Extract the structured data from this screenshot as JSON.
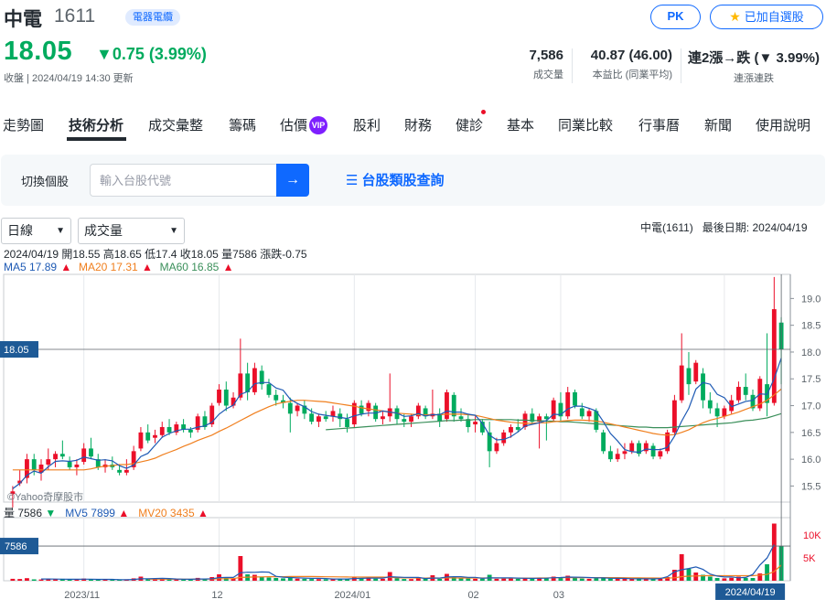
{
  "header": {
    "name": "中電",
    "code": "1611",
    "tag": "電器電纜",
    "price": "18.05",
    "change": "▼0.75 (3.99%)",
    "status_time": "收盤 | 2024/04/19 14:30 更新",
    "pk_label": "PK",
    "watchlist_label": "已加自選股",
    "stats": [
      {
        "value": "7,586",
        "label": "成交量"
      },
      {
        "value": "40.87 (46.00)",
        "label": "本益比 (同業平均)"
      },
      {
        "value": "連2漲→跌 (▼ 3.99%)",
        "label": "連漲連跌"
      }
    ]
  },
  "tabs": [
    {
      "label": "走勢圖"
    },
    {
      "label": "技術分析"
    },
    {
      "label": "成交彙整"
    },
    {
      "label": "籌碼"
    },
    {
      "label": "估價"
    },
    {
      "label": "股利"
    },
    {
      "label": "財務"
    },
    {
      "label": "健診"
    },
    {
      "label": "基本"
    },
    {
      "label": "同業比較"
    },
    {
      "label": "行事曆"
    },
    {
      "label": "新聞"
    },
    {
      "label": "使用說明"
    }
  ],
  "vip_badge": "VIP",
  "search": {
    "label": "切換個股",
    "placeholder": "輸入台股代號",
    "category_link": "台股類股查詢"
  },
  "controls": {
    "period": "日線",
    "indicator": "成交量",
    "stock_info": "中電(1611)   最後日期: 2024/04/19"
  },
  "legend": {
    "ohlc": "2024/04/19 開18.55 高18.65 低17.4 收18.05 量7586 漲跌-0.75",
    "ma5": "MA5 17.89",
    "ma20": "MA20 17.31",
    "ma60": "MA60 16.85",
    "vol": "量 7586",
    "mv5": "MV5 7899",
    "mv20": "MV20 3435",
    "watermark": "©Yahoo奇摩股市"
  },
  "colors": {
    "up": "#eb0f29",
    "down": "#00ab5e",
    "accent": "#0f69ff",
    "ma5": "#1e5ab4",
    "ma20": "#f07f1e",
    "ma60": "#3a8f5a"
  },
  "chart_data": {
    "type": "candlestick",
    "price_axis": {
      "ticks": [
        "19.0",
        "18.5",
        "18.0",
        "17.5",
        "17.0",
        "16.5",
        "16.0",
        "15.5"
      ],
      "min": 15.2,
      "max": 19.45
    },
    "volume_axis": {
      "ticks": [
        "10K",
        "5K"
      ],
      "max": 13000
    },
    "x_ticks": [
      "2023/11",
      "12",
      "2024/01",
      "02",
      "03",
      "04"
    ],
    "x_tick_index": [
      10,
      29,
      48,
      65,
      77,
      100
    ],
    "current_price_label": "18.05",
    "current_volume_label": "7586",
    "last_date_label": "2024/04/19",
    "candles": [
      [
        15.35,
        15.5,
        15.1,
        15.4
      ],
      [
        15.55,
        15.8,
        15.5,
        15.6
      ],
      [
        15.65,
        16.1,
        15.55,
        16.0
      ],
      [
        16.0,
        16.1,
        15.7,
        15.8
      ],
      [
        15.75,
        16.0,
        15.6,
        15.9
      ],
      [
        15.9,
        16.2,
        15.8,
        16.0
      ],
      [
        16.0,
        16.15,
        15.85,
        16.1
      ],
      [
        16.1,
        16.35,
        16.0,
        16.05
      ],
      [
        15.95,
        16.05,
        15.8,
        15.85
      ],
      [
        15.85,
        16.0,
        15.7,
        15.9
      ],
      [
        15.95,
        16.3,
        15.9,
        16.2
      ],
      [
        16.2,
        16.4,
        16.0,
        16.05
      ],
      [
        16.0,
        16.1,
        15.8,
        15.85
      ],
      [
        15.85,
        16.0,
        15.75,
        15.9
      ],
      [
        15.9,
        16.05,
        15.8,
        15.85
      ],
      [
        15.8,
        15.9,
        15.7,
        15.75
      ],
      [
        15.75,
        16.0,
        15.7,
        15.8
      ],
      [
        15.85,
        16.25,
        15.8,
        16.15
      ],
      [
        16.2,
        16.6,
        16.15,
        16.5
      ],
      [
        16.5,
        16.65,
        16.3,
        16.35
      ],
      [
        16.4,
        16.55,
        16.3,
        16.45
      ],
      [
        16.45,
        16.7,
        16.4,
        16.6
      ],
      [
        16.6,
        16.75,
        16.45,
        16.5
      ],
      [
        16.5,
        16.7,
        16.45,
        16.65
      ],
      [
        16.65,
        16.75,
        16.5,
        16.55
      ],
      [
        16.55,
        16.6,
        16.4,
        16.5
      ],
      [
        16.55,
        16.85,
        16.5,
        16.8
      ],
      [
        16.8,
        16.9,
        16.55,
        16.6
      ],
      [
        16.65,
        17.05,
        16.6,
        17.0
      ],
      [
        17.05,
        17.4,
        17.0,
        17.3
      ],
      [
        17.3,
        17.45,
        16.9,
        17.0
      ],
      [
        17.0,
        17.25,
        16.95,
        17.15
      ],
      [
        17.15,
        18.25,
        17.1,
        17.6
      ],
      [
        17.6,
        17.8,
        17.1,
        17.25
      ],
      [
        17.25,
        17.8,
        17.2,
        17.7
      ],
      [
        17.65,
        17.75,
        17.3,
        17.4
      ],
      [
        17.4,
        17.5,
        17.15,
        17.2
      ],
      [
        17.2,
        17.3,
        17.0,
        17.1
      ],
      [
        17.1,
        17.2,
        16.95,
        17.05
      ],
      [
        17.05,
        17.15,
        16.5,
        16.85
      ],
      [
        16.9,
        17.05,
        16.8,
        17.0
      ],
      [
        17.0,
        17.1,
        16.75,
        16.85
      ],
      [
        16.85,
        16.95,
        16.65,
        16.7
      ],
      [
        16.7,
        16.85,
        16.6,
        16.8
      ],
      [
        16.8,
        16.9,
        16.7,
        16.75
      ],
      [
        16.8,
        17.0,
        16.7,
        16.9
      ],
      [
        16.85,
        16.95,
        16.6,
        16.75
      ],
      [
        16.75,
        16.85,
        16.5,
        16.6
      ],
      [
        16.65,
        17.1,
        16.6,
        17.05
      ],
      [
        17.0,
        17.1,
        16.8,
        16.85
      ],
      [
        16.9,
        17.1,
        16.8,
        17.05
      ],
      [
        17.0,
        17.05,
        16.7,
        16.75
      ],
      [
        16.75,
        16.9,
        16.65,
        16.8
      ],
      [
        16.8,
        17.6,
        16.7,
        16.95
      ],
      [
        16.95,
        17.0,
        16.65,
        16.75
      ],
      [
        16.75,
        16.85,
        16.6,
        16.7
      ],
      [
        16.7,
        16.85,
        16.6,
        16.8
      ],
      [
        16.8,
        17.05,
        16.75,
        17.0
      ],
      [
        16.95,
        17.0,
        16.75,
        16.8
      ],
      [
        16.8,
        17.3,
        16.75,
        16.85
      ],
      [
        16.85,
        16.95,
        16.6,
        16.7
      ],
      [
        16.75,
        17.3,
        16.7,
        17.25
      ],
      [
        17.2,
        17.25,
        16.7,
        16.8
      ],
      [
        16.8,
        16.95,
        16.7,
        16.75
      ],
      [
        16.75,
        16.85,
        16.5,
        16.6
      ],
      [
        16.65,
        16.8,
        16.5,
        16.7
      ],
      [
        16.7,
        16.75,
        16.45,
        16.5
      ],
      [
        16.5,
        16.7,
        15.85,
        16.15
      ],
      [
        16.15,
        16.4,
        16.1,
        16.3
      ],
      [
        16.3,
        16.55,
        16.25,
        16.5
      ],
      [
        16.5,
        16.65,
        16.4,
        16.6
      ],
      [
        16.6,
        16.75,
        16.5,
        16.55
      ],
      [
        16.6,
        16.9,
        16.55,
        16.85
      ],
      [
        16.85,
        16.95,
        16.65,
        16.7
      ],
      [
        16.7,
        16.85,
        16.2,
        16.8
      ],
      [
        16.8,
        16.85,
        16.35,
        16.75
      ],
      [
        16.75,
        17.15,
        16.7,
        17.1
      ],
      [
        17.05,
        17.25,
        16.7,
        16.8
      ],
      [
        16.8,
        17.35,
        16.75,
        17.25
      ],
      [
        17.25,
        17.3,
        16.95,
        17.0
      ],
      [
        16.95,
        17.05,
        16.75,
        16.8
      ],
      [
        16.8,
        16.95,
        16.7,
        16.9
      ],
      [
        16.9,
        16.95,
        16.5,
        16.55
      ],
      [
        16.5,
        16.55,
        16.1,
        16.15
      ],
      [
        16.15,
        16.25,
        15.95,
        16.0
      ],
      [
        16.0,
        16.2,
        15.95,
        16.1
      ],
      [
        16.1,
        16.3,
        16.0,
        16.15
      ],
      [
        16.15,
        16.35,
        16.1,
        16.3
      ],
      [
        16.3,
        16.35,
        16.05,
        16.1
      ],
      [
        16.15,
        16.35,
        16.1,
        16.3
      ],
      [
        16.25,
        16.3,
        16.0,
        16.05
      ],
      [
        16.05,
        16.2,
        16.0,
        16.15
      ],
      [
        16.15,
        16.55,
        16.1,
        16.5
      ],
      [
        16.5,
        17.2,
        16.45,
        17.1
      ],
      [
        17.1,
        18.35,
        17.05,
        17.75
      ],
      [
        17.7,
        18.0,
        17.2,
        17.4
      ],
      [
        17.45,
        17.85,
        17.4,
        17.8
      ],
      [
        17.6,
        17.7,
        16.95,
        17.1
      ],
      [
        17.1,
        17.25,
        16.85,
        16.95
      ],
      [
        16.95,
        17.05,
        16.6,
        16.8
      ],
      [
        16.8,
        17.0,
        16.75,
        16.95
      ],
      [
        16.9,
        17.2,
        16.85,
        17.1
      ],
      [
        17.1,
        17.45,
        17.05,
        17.35
      ],
      [
        17.35,
        17.6,
        17.1,
        17.2
      ],
      [
        17.2,
        17.3,
        16.9,
        16.95
      ],
      [
        16.95,
        17.55,
        16.9,
        17.5
      ],
      [
        17.4,
        18.35,
        16.8,
        17.05
      ],
      [
        17.05,
        19.4,
        17.0,
        18.8
      ],
      [
        18.55,
        18.65,
        17.4,
        18.05
      ]
    ],
    "volumes": [
      420,
      380,
      560,
      300,
      280,
      360,
      310,
      420,
      260,
      240,
      480,
      300,
      250,
      230,
      220,
      210,
      260,
      520,
      900,
      380,
      340,
      420,
      300,
      360,
      280,
      260,
      620,
      340,
      800,
      1400,
      600,
      520,
      5400,
      1400,
      1300,
      800,
      700,
      600,
      520,
      900,
      460,
      420,
      380,
      360,
      320,
      420,
      380,
      400,
      900,
      520,
      640,
      460,
      420,
      1900,
      560,
      380,
      360,
      520,
      420,
      1200,
      420,
      1500,
      800,
      500,
      480,
      420,
      460,
      1300,
      420,
      480,
      520,
      420,
      640,
      460,
      700,
      560,
      900,
      760,
      1100,
      600,
      480,
      420,
      560,
      700,
      460,
      420,
      400,
      440,
      380,
      420,
      380,
      400,
      800,
      2400,
      5800,
      2600,
      1800,
      1300,
      900,
      600,
      520,
      640,
      900,
      620,
      600,
      1600,
      3600,
      12500,
      7586
    ],
    "ma5": [
      15.45,
      15.55,
      15.7,
      15.78,
      15.74,
      15.86,
      15.96,
      15.97,
      15.96,
      15.98,
      16.04,
      16.01,
      15.98,
      15.99,
      15.97,
      15.88,
      15.83,
      15.89,
      16.05,
      16.11,
      16.26,
      16.41,
      16.48,
      16.53,
      16.56,
      16.56,
      16.6,
      16.62,
      16.69,
      16.84,
      16.94,
      17.01,
      17.21,
      17.26,
      17.41,
      17.43,
      17.43,
      17.33,
      17.29,
      17.12,
      17.04,
      16.98,
      16.89,
      16.84,
      16.82,
      16.8,
      16.78,
      16.76,
      16.81,
      16.84,
      16.86,
      16.86,
      16.9,
      16.88,
      16.86,
      16.8,
      16.81,
      16.85,
      16.81,
      16.83,
      16.83,
      16.9,
      16.88,
      16.88,
      16.84,
      16.82,
      16.67,
      16.45,
      16.36,
      16.37,
      16.42,
      16.51,
      16.62,
      16.65,
      16.68,
      16.72,
      16.84,
      16.83,
      16.94,
      16.99,
      16.99,
      16.95,
      16.9,
      16.7,
      16.48,
      16.34,
      16.18,
      16.14,
      16.13,
      16.19,
      16.18,
      16.18,
      16.22,
      16.43,
      16.71,
      16.95,
      17.31,
      17.43,
      17.4,
      17.21,
      17.15,
      16.98,
      17.03,
      17.08,
      17.1,
      17.22,
      17.21,
      17.5,
      17.89
    ],
    "ma20": [
      15.8,
      15.8,
      15.8,
      15.8,
      15.8,
      15.8,
      15.8,
      15.8,
      15.8,
      15.8,
      15.8,
      15.82,
      15.85,
      15.87,
      15.88,
      15.9,
      15.9,
      15.92,
      15.95,
      15.98,
      16.02,
      16.08,
      16.13,
      16.18,
      16.24,
      16.29,
      16.35,
      16.4,
      16.45,
      16.52,
      16.58,
      16.65,
      16.72,
      16.79,
      16.86,
      16.92,
      16.98,
      17.03,
      17.06,
      17.08,
      17.1,
      17.1,
      17.09,
      17.08,
      17.07,
      17.05,
      17.03,
      17.01,
      16.99,
      16.96,
      16.94,
      16.92,
      16.9,
      16.88,
      16.86,
      16.85,
      16.84,
      16.83,
      16.83,
      16.83,
      16.83,
      16.84,
      16.84,
      16.84,
      16.83,
      16.82,
      16.79,
      16.76,
      16.73,
      16.71,
      16.69,
      16.68,
      16.67,
      16.67,
      16.68,
      16.68,
      16.7,
      16.71,
      16.72,
      16.73,
      16.73,
      16.72,
      16.71,
      16.69,
      16.66,
      16.63,
      16.6,
      16.57,
      16.54,
      16.51,
      16.48,
      16.46,
      16.45,
      16.46,
      16.5,
      16.55,
      16.62,
      16.68,
      16.73,
      16.76,
      16.8,
      16.84,
      16.88,
      16.93,
      16.98,
      17.03,
      17.1,
      17.2,
      17.31
    ],
    "ma60": [
      null,
      null,
      null,
      null,
      null,
      null,
      null,
      null,
      null,
      null,
      null,
      null,
      null,
      null,
      null,
      null,
      null,
      null,
      null,
      null,
      null,
      null,
      null,
      null,
      null,
      null,
      null,
      null,
      null,
      null,
      null,
      null,
      null,
      null,
      null,
      null,
      null,
      null,
      null,
      null,
      null,
      null,
      null,
      null,
      16.55,
      16.56,
      16.57,
      16.58,
      16.59,
      16.6,
      16.61,
      16.62,
      16.63,
      16.64,
      16.65,
      16.66,
      16.67,
      16.68,
      16.69,
      16.7,
      16.71,
      16.72,
      16.72,
      16.73,
      16.73,
      16.74,
      16.74,
      16.74,
      16.74,
      16.74,
      16.74,
      16.73,
      16.73,
      16.72,
      16.72,
      16.71,
      16.71,
      16.7,
      16.7,
      16.69,
      16.68,
      16.67,
      16.66,
      16.65,
      16.64,
      16.63,
      16.62,
      16.61,
      16.6,
      16.6,
      16.59,
      16.59,
      16.59,
      16.6,
      16.61,
      16.62,
      16.63,
      16.64,
      16.65,
      16.66,
      16.67,
      16.68,
      16.7,
      16.72,
      16.73,
      16.75,
      16.77,
      16.81,
      16.85
    ],
    "mv5": [
      null,
      null,
      null,
      null,
      390,
      380,
      360,
      350,
      320,
      320,
      340,
      340,
      300,
      300,
      300,
      240,
      230,
      290,
      420,
      450,
      480,
      510,
      470,
      390,
      340,
      320,
      370,
      370,
      450,
      680,
      750,
      730,
      1740,
      1860,
      1850,
      1910,
      1880,
      960,
      780,
      700,
      640,
      580,
      530,
      510,
      490,
      380,
      380,
      380,
      480,
      520,
      570,
      580,
      590,
      870,
      800,
      750,
      720,
      740,
      480,
      570,
      580,
      810,
      870,
      890,
      740,
      740,
      540,
      630,
      620,
      610,
      640,
      570,
      540,
      510,
      550,
      560,
      660,
      700,
      800,
      780,
      760,
      700,
      640,
      610,
      550,
      520,
      500,
      450,
      420,
      410,
      400,
      470,
      870,
      1960,
      2400,
      2680,
      3010,
      2480,
      1460,
      1030,
      810,
      850,
      650,
      720,
      1380,
      3440,
      4980,
      7899
    ],
    "mv20": [
      null,
      null,
      null,
      null,
      null,
      null,
      null,
      null,
      null,
      null,
      null,
      null,
      null,
      null,
      null,
      null,
      null,
      null,
      null,
      340,
      340,
      350,
      340,
      350,
      350,
      340,
      360,
      360,
      390,
      440,
      440,
      460,
      710,
      770,
      820,
      850,
      870,
      880,
      890,
      920,
      920,
      920,
      920,
      900,
      860,
      860,
      840,
      830,
      800,
      800,
      800,
      800,
      800,
      740,
      640,
      630,
      620,
      600,
      580,
      610,
      590,
      630,
      640,
      590,
      600,
      600,
      600,
      600,
      600,
      560,
      570,
      570,
      580,
      560,
      600,
      600,
      640,
      660,
      690,
      690,
      690,
      670,
      670,
      680,
      680,
      680,
      660,
      640,
      620,
      600,
      600,
      580,
      570,
      650,
      900,
      1000,
      1050,
      1090,
      1110,
      1100,
      1100,
      1100,
      1100,
      1100,
      1100,
      1250,
      1400,
      2000,
      3435
    ]
  }
}
